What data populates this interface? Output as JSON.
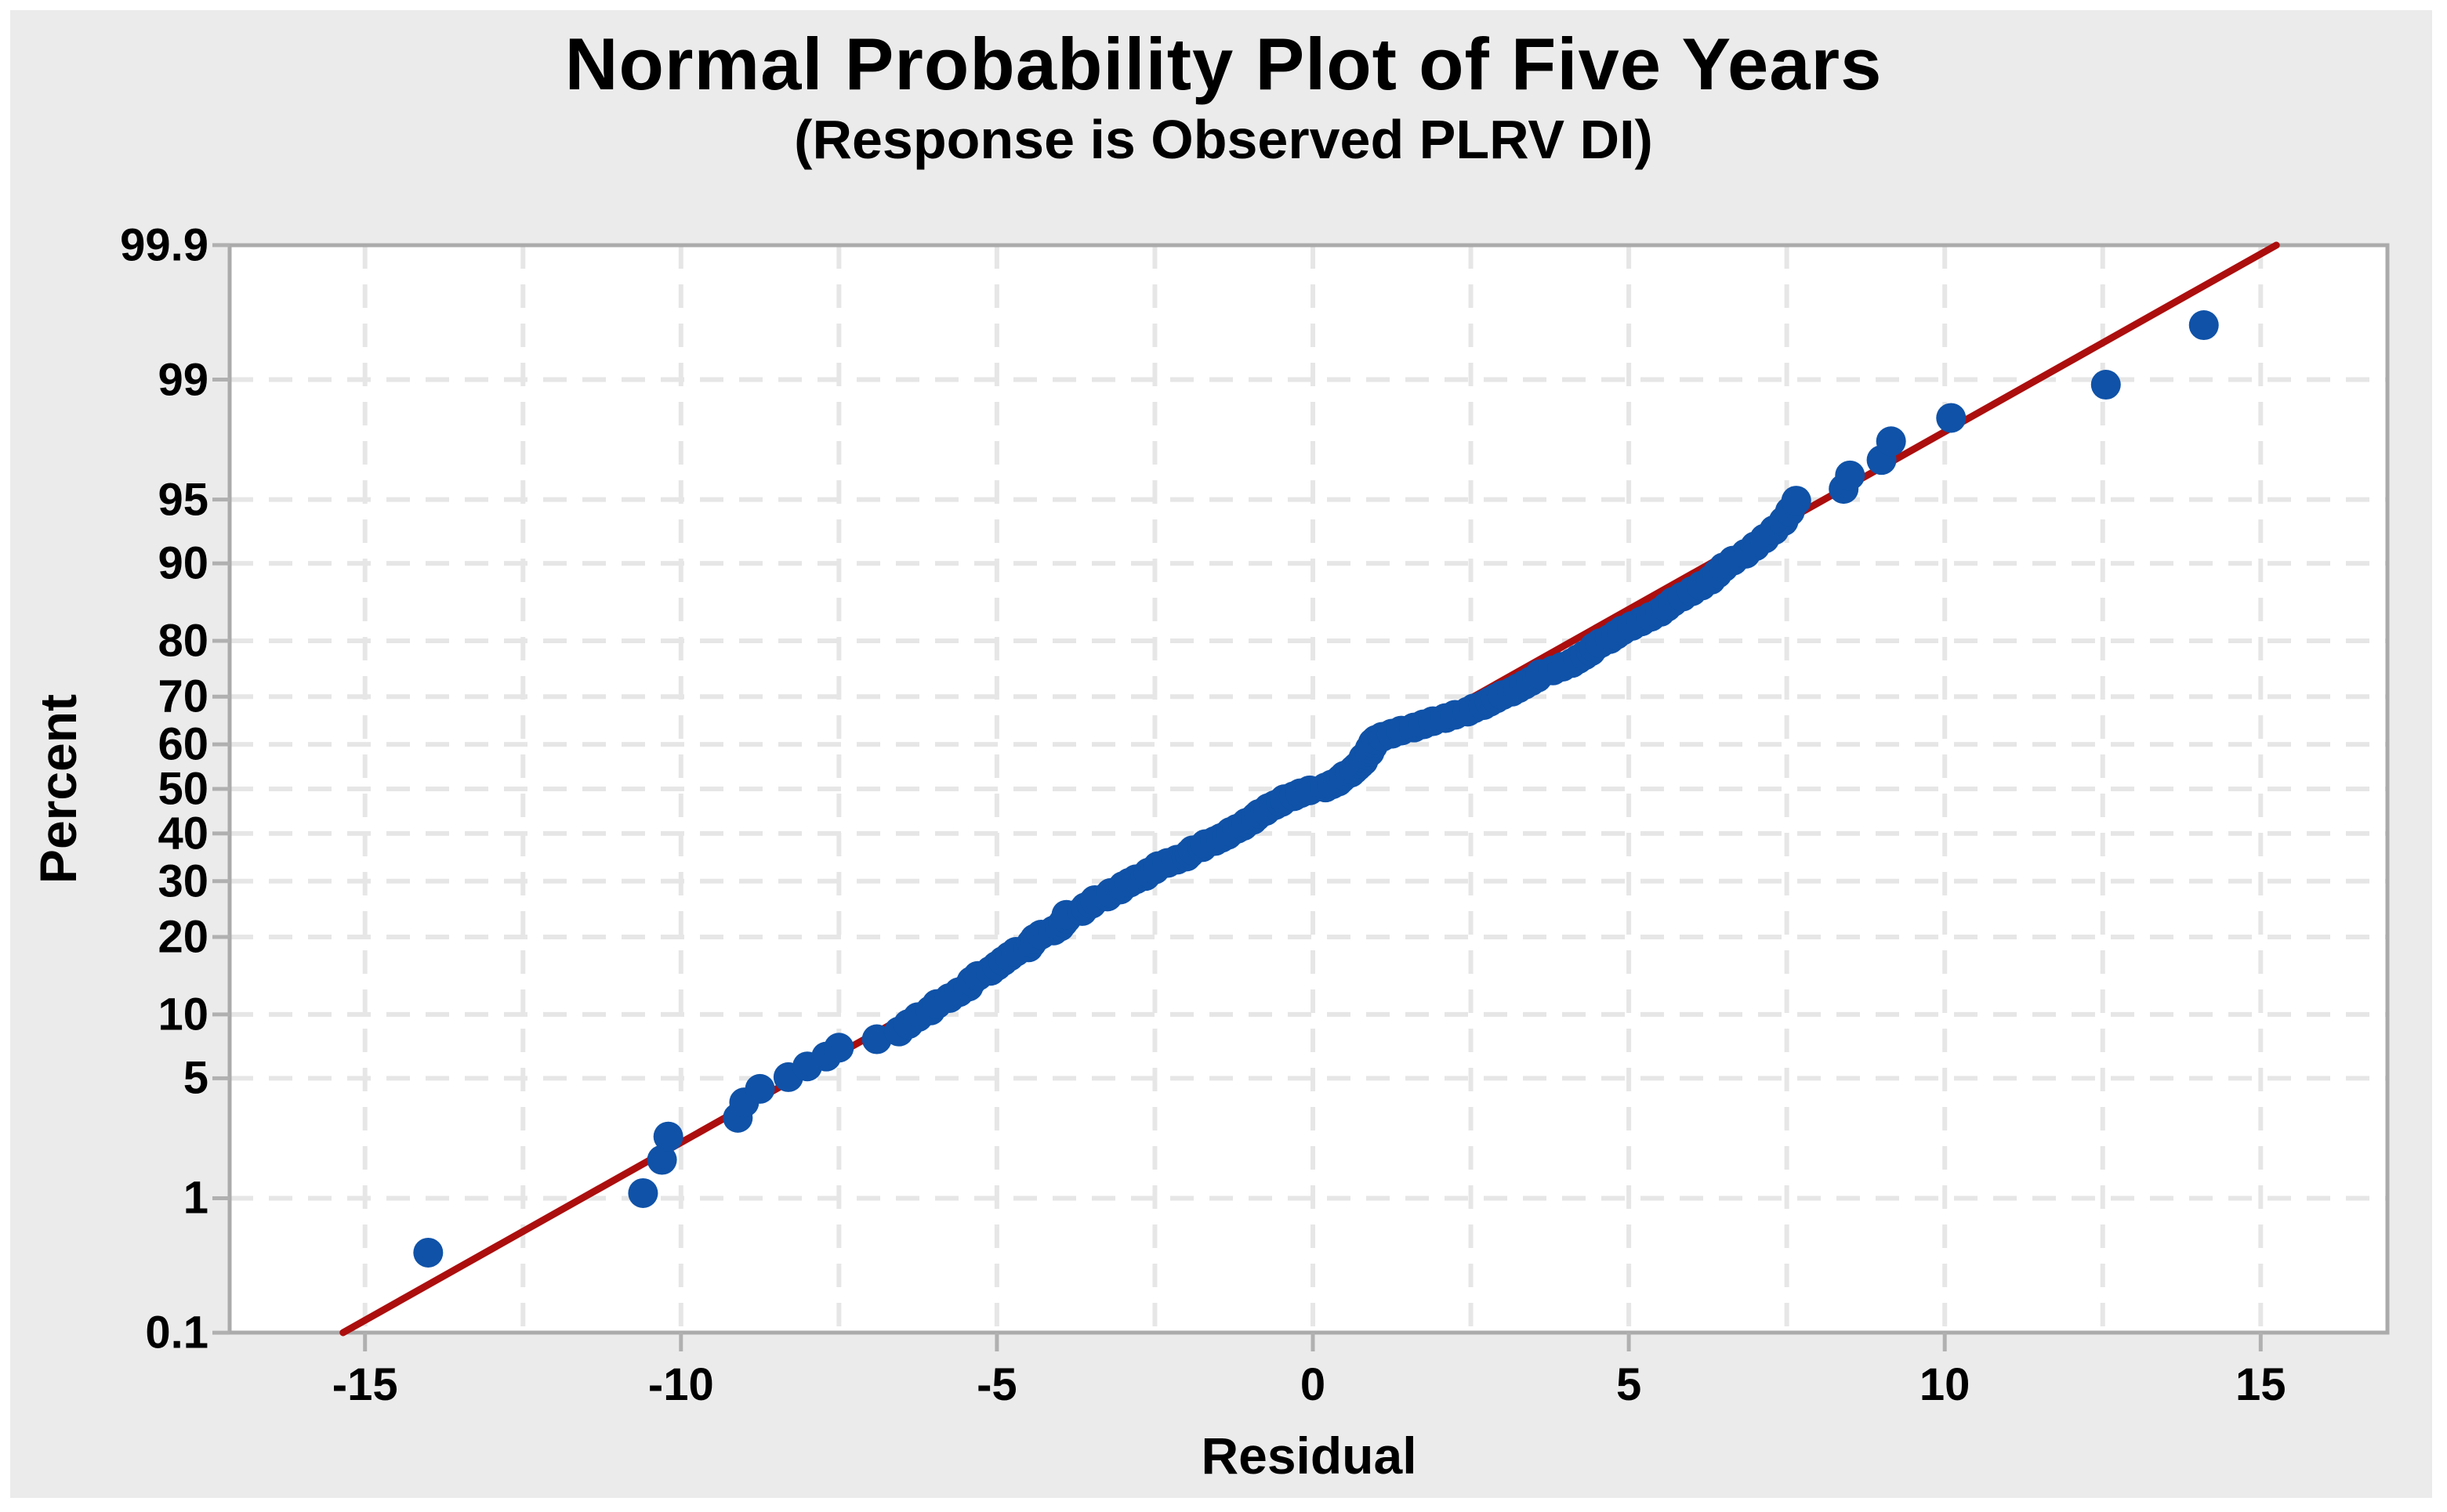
{
  "chart_data": {
    "type": "scatter",
    "title": "Normal Probability Plot of Five Years",
    "subtitle": "(Response is Observed PLRV DI)",
    "xlabel": "Residual",
    "ylabel": "Percent",
    "y_scale": "normal-probability-percent",
    "xlim": [
      -17.15,
      17.0
    ],
    "ylim": [
      0.1,
      99.9
    ],
    "x_ticks": [
      -15,
      -10,
      -5,
      0,
      5,
      10,
      15
    ],
    "x_gridlines": [
      -15,
      -12.5,
      -10,
      -7.5,
      -5,
      -2.5,
      0,
      2.5,
      5,
      7.5,
      10,
      12.5,
      15
    ],
    "y_ticks": [
      "0.1",
      "1",
      "5",
      "10",
      "20",
      "30",
      "40",
      "50",
      "60",
      "70",
      "80",
      "90",
      "95",
      "99",
      "99.9"
    ],
    "y_gridlines": [
      1,
      5,
      10,
      20,
      30,
      40,
      50,
      60,
      70,
      80,
      90,
      95,
      99
    ],
    "grid": "dashed",
    "legend": "none",
    "fit_line": {
      "mean": -0.05,
      "sd": 4.95
    },
    "points": [
      [
        -14.0,
        0.42
      ],
      [
        -10.6,
        1.08
      ],
      [
        -10.3,
        1.75
      ],
      [
        -10.2,
        2.41
      ],
      [
        -9.1,
        3.08
      ],
      [
        -9.0,
        3.74
      ],
      [
        -8.75,
        4.41
      ],
      [
        -8.3,
        5.07
      ],
      [
        -8.0,
        5.74
      ],
      [
        -7.7,
        6.41
      ],
      [
        -7.5,
        7.07
      ],
      [
        -6.9,
        7.74
      ],
      [
        -6.55,
        8.4
      ],
      [
        -6.4,
        9.07
      ],
      [
        -6.25,
        9.73
      ],
      [
        -6.05,
        10.4
      ],
      [
        -5.95,
        11.07
      ],
      [
        -5.75,
        11.73
      ],
      [
        -5.6,
        12.4
      ],
      [
        -5.45,
        13.06
      ],
      [
        -5.4,
        13.73
      ],
      [
        -5.3,
        14.39
      ],
      [
        -5.1,
        15.06
      ],
      [
        -5.0,
        15.72
      ],
      [
        -4.9,
        16.39
      ],
      [
        -4.8,
        17.06
      ],
      [
        -4.7,
        17.72
      ],
      [
        -4.5,
        18.39
      ],
      [
        -4.45,
        19.05
      ],
      [
        -4.4,
        19.72
      ],
      [
        -4.3,
        20.38
      ],
      [
        -4.1,
        21.05
      ],
      [
        -4.0,
        21.71
      ],
      [
        -3.95,
        22.38
      ],
      [
        -3.9,
        23.05
      ],
      [
        -3.9,
        23.71
      ],
      [
        -3.65,
        24.38
      ],
      [
        -3.6,
        25.04
      ],
      [
        -3.5,
        25.71
      ],
      [
        -3.45,
        26.37
      ],
      [
        -3.25,
        27.04
      ],
      [
        -3.2,
        27.7
      ],
      [
        -3.05,
        28.37
      ],
      [
        -3.0,
        29.04
      ],
      [
        -2.9,
        29.7
      ],
      [
        -2.8,
        30.37
      ],
      [
        -2.65,
        31.03
      ],
      [
        -2.6,
        31.7
      ],
      [
        -2.5,
        32.36
      ],
      [
        -2.45,
        33.03
      ],
      [
        -2.3,
        33.69
      ],
      [
        -2.15,
        34.36
      ],
      [
        -2.0,
        35.03
      ],
      [
        -1.95,
        35.69
      ],
      [
        -1.9,
        36.36
      ],
      [
        -1.75,
        37.02
      ],
      [
        -1.7,
        37.69
      ],
      [
        -1.55,
        38.35
      ],
      [
        -1.45,
        39.02
      ],
      [
        -1.35,
        39.69
      ],
      [
        -1.3,
        40.35
      ],
      [
        -1.2,
        41.02
      ],
      [
        -1.1,
        41.68
      ],
      [
        -1.05,
        42.35
      ],
      [
        -0.95,
        43.01
      ],
      [
        -0.9,
        43.68
      ],
      [
        -0.85,
        44.34
      ],
      [
        -0.75,
        45.01
      ],
      [
        -0.7,
        45.68
      ],
      [
        -0.6,
        46.34
      ],
      [
        -0.5,
        47.01
      ],
      [
        -0.45,
        47.67
      ],
      [
        -0.3,
        48.34
      ],
      [
        -0.2,
        49.0
      ],
      [
        -0.05,
        49.67
      ],
      [
        0.2,
        50.33
      ],
      [
        0.3,
        51.0
      ],
      [
        0.4,
        51.66
      ],
      [
        0.45,
        52.33
      ],
      [
        0.5,
        52.99
      ],
      [
        0.6,
        53.66
      ],
      [
        0.65,
        54.33
      ],
      [
        0.7,
        54.99
      ],
      [
        0.75,
        55.66
      ],
      [
        0.8,
        56.32
      ],
      [
        0.8,
        56.99
      ],
      [
        0.85,
        57.65
      ],
      [
        0.9,
        58.32
      ],
      [
        0.9,
        58.99
      ],
      [
        0.95,
        59.65
      ],
      [
        0.95,
        60.32
      ],
      [
        1.0,
        60.98
      ],
      [
        1.1,
        61.65
      ],
      [
        1.25,
        62.31
      ],
      [
        1.4,
        62.98
      ],
      [
        1.6,
        63.64
      ],
      [
        1.75,
        64.31
      ],
      [
        1.9,
        64.98
      ],
      [
        2.1,
        65.64
      ],
      [
        2.25,
        66.31
      ],
      [
        2.45,
        66.97
      ],
      [
        2.55,
        67.64
      ],
      [
        2.7,
        68.3
      ],
      [
        2.8,
        68.97
      ],
      [
        2.9,
        69.63
      ],
      [
        3.0,
        70.3
      ],
      [
        3.15,
        70.97
      ],
      [
        3.25,
        71.63
      ],
      [
        3.35,
        72.3
      ],
      [
        3.45,
        72.96
      ],
      [
        3.55,
        73.63
      ],
      [
        3.6,
        74.29
      ],
      [
        3.8,
        74.96
      ],
      [
        3.95,
        75.62
      ],
      [
        4.1,
        76.29
      ],
      [
        4.2,
        76.96
      ],
      [
        4.3,
        77.62
      ],
      [
        4.4,
        78.29
      ],
      [
        4.45,
        78.95
      ],
      [
        4.55,
        79.62
      ],
      [
        4.7,
        80.28
      ],
      [
        4.8,
        80.95
      ],
      [
        4.9,
        81.61
      ],
      [
        5.05,
        82.28
      ],
      [
        5.2,
        82.95
      ],
      [
        5.35,
        83.61
      ],
      [
        5.5,
        84.28
      ],
      [
        5.6,
        84.94
      ],
      [
        5.7,
        85.61
      ],
      [
        5.85,
        86.27
      ],
      [
        6.0,
        86.94
      ],
      [
        6.15,
        87.6
      ],
      [
        6.3,
        88.27
      ],
      [
        6.4,
        88.94
      ],
      [
        6.5,
        89.6
      ],
      [
        6.65,
        90.27
      ],
      [
        6.85,
        90.93
      ],
      [
        7.0,
        91.6
      ],
      [
        7.15,
        92.26
      ],
      [
        7.3,
        92.93
      ],
      [
        7.45,
        93.6
      ],
      [
        7.55,
        94.26
      ],
      [
        7.65,
        94.93
      ],
      [
        8.4,
        95.59
      ],
      [
        8.5,
        96.26
      ],
      [
        9.0,
        96.92
      ],
      [
        9.15,
        97.59
      ],
      [
        10.1,
        98.25
      ],
      [
        12.55,
        98.92
      ],
      [
        14.1,
        99.58
      ]
    ]
  },
  "colors": {
    "background": "#EBEBEB",
    "plot_background": "#FFFFFF",
    "frame": "#ABABAB",
    "tick": "#B0B0B0",
    "gridline": "#E6E6E6",
    "marker": "#0F52A8",
    "fit_line": "#AC0E0E",
    "text": "#000000"
  }
}
